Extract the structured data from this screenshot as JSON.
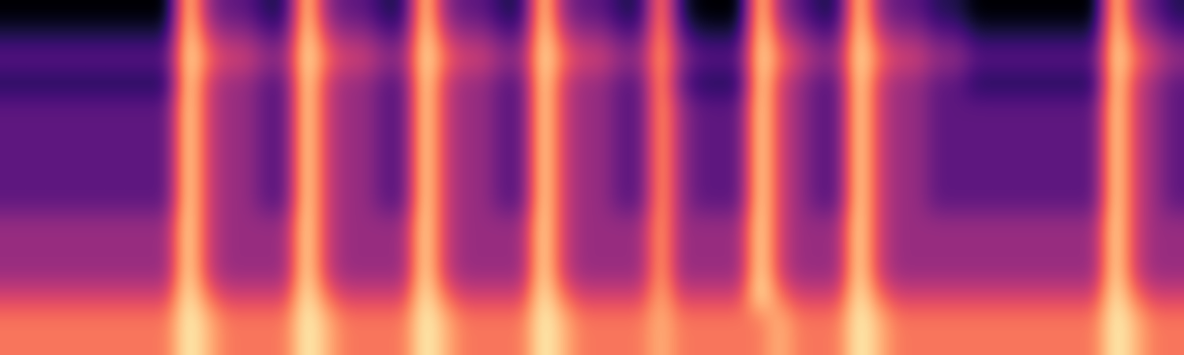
{
  "chart_data": {
    "type": "heatmap",
    "tick_labels": false,
    "color": "magma",
    "cells": [
      [
        1,
        1,
        1,
        1,
        1,
        1,
        1,
        1,
        1,
        8,
        4,
        3,
        3,
        2,
        2,
        8,
        4,
        3,
        3,
        2,
        2,
        8,
        4,
        3,
        3,
        2,
        2,
        8,
        4,
        3,
        3,
        2,
        2,
        7,
        2,
        1,
        1,
        1,
        8,
        4,
        3,
        2,
        2,
        8,
        4,
        3,
        3,
        2,
        2,
        1,
        1,
        1,
        1,
        1,
        1,
        1,
        8,
        4,
        3,
        2
      ],
      [
        2,
        2,
        2,
        2,
        2,
        2,
        2,
        2,
        2,
        8,
        5,
        4,
        4,
        3,
        3,
        8,
        5,
        4,
        4,
        3,
        3,
        8,
        5,
        4,
        4,
        3,
        3,
        8,
        5,
        4,
        4,
        3,
        3,
        7,
        3,
        2,
        2,
        2,
        8,
        5,
        4,
        3,
        3,
        8,
        5,
        4,
        4,
        3,
        3,
        2,
        2,
        2,
        2,
        2,
        2,
        2,
        8,
        5,
        4,
        3
      ],
      [
        3,
        3,
        3,
        3,
        3,
        3,
        3,
        3,
        3,
        8,
        6,
        5,
        5,
        4,
        4,
        8,
        6,
        5,
        5,
        4,
        4,
        8,
        6,
        5,
        5,
        4,
        4,
        8,
        6,
        5,
        5,
        4,
        4,
        7,
        4,
        3,
        3,
        3,
        8,
        6,
        5,
        4,
        4,
        8,
        6,
        5,
        5,
        4,
        4,
        3,
        3,
        3,
        3,
        3,
        3,
        3,
        8,
        6,
        5,
        4
      ],
      [
        2,
        2,
        2,
        2,
        2,
        2,
        2,
        2,
        2,
        8,
        5,
        4,
        4,
        3,
        3,
        8,
        5,
        4,
        4,
        3,
        3,
        8,
        5,
        4,
        4,
        3,
        3,
        8,
        5,
        4,
        4,
        3,
        3,
        7,
        3,
        2,
        2,
        2,
        8,
        5,
        4,
        3,
        3,
        8,
        5,
        4,
        4,
        3,
        3,
        2,
        2,
        2,
        2,
        2,
        2,
        2,
        8,
        5,
        4,
        3
      ],
      [
        3,
        3,
        3,
        3,
        3,
        3,
        3,
        3,
        3,
        8,
        5,
        4,
        4,
        3,
        3,
        8,
        5,
        4,
        4,
        3,
        3,
        8,
        5,
        4,
        4,
        3,
        3,
        8,
        5,
        4,
        4,
        3,
        3,
        7,
        4,
        3,
        3,
        3,
        8,
        5,
        4,
        3,
        3,
        8,
        5,
        4,
        4,
        3,
        3,
        3,
        3,
        3,
        3,
        3,
        3,
        3,
        8,
        5,
        4,
        3
      ],
      [
        3,
        3,
        3,
        3,
        3,
        3,
        3,
        3,
        3,
        8,
        5,
        4,
        4,
        3,
        3,
        8,
        5,
        4,
        4,
        3,
        3,
        8,
        5,
        4,
        4,
        3,
        3,
        8,
        5,
        4,
        4,
        3,
        3,
        7,
        4,
        3,
        3,
        3,
        8,
        5,
        4,
        3,
        3,
        8,
        5,
        4,
        4,
        3,
        3,
        3,
        3,
        3,
        3,
        3,
        3,
        3,
        8,
        5,
        4,
        3
      ],
      [
        3,
        3,
        3,
        3,
        3,
        3,
        3,
        3,
        3,
        8,
        5,
        4,
        4,
        3,
        3,
        8,
        5,
        4,
        4,
        3,
        3,
        8,
        5,
        4,
        4,
        3,
        3,
        8,
        5,
        4,
        4,
        3,
        3,
        7,
        4,
        3,
        3,
        3,
        8,
        5,
        4,
        3,
        3,
        8,
        5,
        4,
        4,
        3,
        3,
        3,
        3,
        3,
        3,
        3,
        3,
        3,
        8,
        5,
        4,
        3
      ],
      [
        3,
        3,
        3,
        3,
        3,
        3,
        3,
        3,
        3,
        8,
        5,
        4,
        4,
        3,
        3,
        8,
        5,
        4,
        4,
        3,
        3,
        8,
        5,
        4,
        4,
        3,
        3,
        8,
        5,
        4,
        4,
        3,
        3,
        7,
        4,
        3,
        3,
        3,
        8,
        5,
        4,
        3,
        3,
        8,
        5,
        4,
        4,
        3,
        3,
        3,
        3,
        3,
        3,
        3,
        3,
        3,
        8,
        5,
        4,
        3
      ],
      [
        3,
        3,
        3,
        3,
        3,
        3,
        3,
        3,
        3,
        8,
        5,
        4,
        4,
        3,
        3,
        8,
        5,
        4,
        4,
        3,
        3,
        8,
        5,
        4,
        4,
        3,
        3,
        8,
        5,
        4,
        4,
        3,
        3,
        7,
        4,
        3,
        3,
        3,
        8,
        5,
        4,
        3,
        3,
        8,
        5,
        4,
        4,
        3,
        3,
        3,
        3,
        3,
        3,
        3,
        3,
        3,
        8,
        5,
        4,
        3
      ],
      [
        4,
        4,
        4,
        4,
        4,
        4,
        4,
        4,
        4,
        8,
        5,
        4,
        4,
        4,
        4,
        8,
        5,
        4,
        4,
        4,
        4,
        8,
        5,
        4,
        4,
        4,
        4,
        8,
        5,
        4,
        4,
        4,
        4,
        7,
        4,
        4,
        4,
        4,
        8,
        5,
        4,
        4,
        4,
        8,
        5,
        4,
        4,
        4,
        4,
        4,
        4,
        4,
        4,
        4,
        4,
        4,
        8,
        5,
        4,
        4
      ],
      [
        4,
        4,
        4,
        4,
        4,
        4,
        4,
        4,
        4,
        8,
        5,
        4,
        4,
        4,
        4,
        8,
        5,
        4,
        4,
        4,
        4,
        8,
        5,
        4,
        4,
        4,
        4,
        8,
        5,
        4,
        4,
        4,
        4,
        7,
        4,
        4,
        4,
        4,
        8,
        5,
        4,
        4,
        4,
        8,
        5,
        4,
        4,
        4,
        4,
        4,
        4,
        4,
        4,
        4,
        4,
        4,
        8,
        5,
        4,
        4
      ],
      [
        4,
        4,
        4,
        4,
        4,
        4,
        4,
        4,
        4,
        8,
        5,
        4,
        4,
        4,
        4,
        8,
        5,
        4,
        4,
        4,
        4,
        8,
        5,
        4,
        4,
        4,
        4,
        8,
        5,
        4,
        4,
        4,
        4,
        7,
        4,
        4,
        4,
        4,
        8,
        5,
        4,
        4,
        4,
        8,
        5,
        4,
        4,
        4,
        4,
        4,
        4,
        4,
        4,
        4,
        4,
        4,
        8,
        5,
        4,
        4
      ],
      [
        5,
        5,
        5,
        5,
        5,
        5,
        5,
        5,
        5,
        8,
        6,
        5,
        5,
        5,
        5,
        8,
        6,
        5,
        5,
        5,
        5,
        8,
        6,
        5,
        5,
        5,
        5,
        8,
        6,
        5,
        5,
        5,
        5,
        7,
        5,
        5,
        5,
        5,
        8,
        6,
        5,
        5,
        5,
        8,
        6,
        5,
        5,
        5,
        5,
        5,
        5,
        5,
        5,
        5,
        5,
        5,
        8,
        6,
        5,
        5
      ],
      [
        6,
        6,
        6,
        6,
        6,
        6,
        6,
        6,
        6,
        8,
        7,
        6,
        6,
        6,
        6,
        8,
        7,
        6,
        6,
        6,
        6,
        8,
        7,
        6,
        6,
        6,
        6,
        8,
        7,
        6,
        6,
        6,
        6,
        7,
        6,
        6,
        6,
        6,
        6,
        7,
        6,
        6,
        6,
        8,
        7,
        6,
        6,
        6,
        6,
        6,
        6,
        6,
        6,
        6,
        6,
        6,
        8,
        7,
        6,
        6
      ],
      [
        6,
        6,
        6,
        6,
        6,
        6,
        6,
        6,
        6,
        8,
        7,
        6,
        6,
        6,
        6,
        8,
        7,
        6,
        6,
        6,
        6,
        8,
        7,
        6,
        6,
        6,
        6,
        8,
        7,
        6,
        6,
        6,
        6,
        7,
        6,
        6,
        6,
        6,
        6,
        7,
        6,
        6,
        6,
        8,
        7,
        6,
        6,
        6,
        6,
        6,
        6,
        6,
        6,
        6,
        6,
        6,
        8,
        7,
        6,
        6
      ]
    ]
  }
}
